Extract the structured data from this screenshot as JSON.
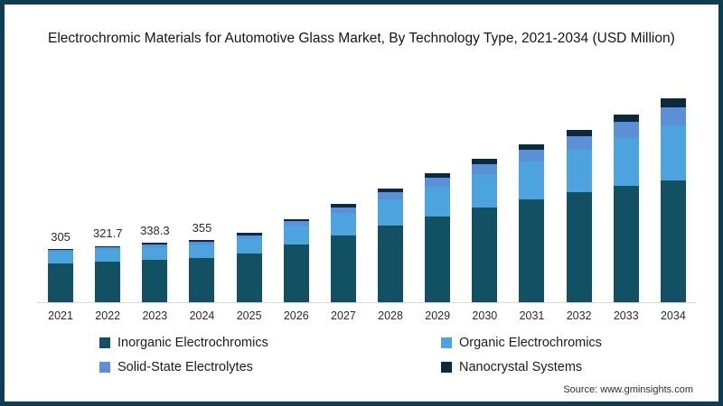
{
  "title": "Electrochromic Materials for Automotive Glass Market, By Technology Type, 2021-2034 (USD Million)",
  "source": "Source: www.gminsights.com",
  "colors": {
    "inorganic": "#125064",
    "organic": "#4da3dd",
    "solid_state": "#5b8fd6",
    "nanocrystal": "#0d2a3a",
    "border": "#0e3e52",
    "axis_line": "#d9d9d9"
  },
  "legend": {
    "items": [
      {
        "label": "Inorganic Electrochromics",
        "color": "#125064"
      },
      {
        "label": "Organic Electrochromics",
        "color": "#4da3dd"
      },
      {
        "label": "Solid-State Electrolytes",
        "color": "#5b8fd6"
      },
      {
        "label": "Nanocrystal Systems",
        "color": "#0d2a3a"
      }
    ]
  },
  "chart_data": {
    "type": "bar",
    "stacked": true,
    "grid": false,
    "legend_position": "bottom",
    "title": "Electrochromic Materials for Automotive Glass Market, By Technology Type, 2021-2034 (USD Million)",
    "xlabel": "",
    "ylabel": "",
    "ylim": [
      0,
      1210
    ],
    "categories": [
      "2021",
      "2022",
      "2023",
      "2024",
      "2025",
      "2026",
      "2027",
      "2028",
      "2029",
      "2030",
      "2031",
      "2032",
      "2033",
      "2034"
    ],
    "series": [
      {
        "name": "Inorganic Electrochromics",
        "color": "#125064",
        "values": [
          222,
          232.7,
          242.3,
          251,
          276,
          327,
          380,
          436,
          489,
          540,
          584,
          629,
          665,
          696
        ]
      },
      {
        "name": "Organic Electrochromics",
        "color": "#4da3dd",
        "values": [
          66,
          70,
          74,
          79,
          88,
          110,
          130,
          152,
          172,
          193,
          221,
          243,
          272,
          312
        ]
      },
      {
        "name": "Solid-State Electrolytes",
        "color": "#5b8fd6",
        "values": [
          10,
          11,
          13,
          15,
          18,
          24,
          32,
          40,
          48,
          55,
          62,
          75,
          90,
          105
        ]
      },
      {
        "name": "Nanocrystal Systems",
        "color": "#0d2a3a",
        "values": [
          7,
          8,
          9,
          10,
          12,
          15,
          18,
          22,
          26,
          30,
          33,
          38,
          43,
          50
        ]
      }
    ],
    "totals": [
      305,
      321.7,
      338.3,
      355,
      394,
      476,
      560,
      650,
      735,
      818,
      900,
      985,
      1070,
      1163
    ],
    "data_labels": {
      "2021": "305",
      "2022": "321.7",
      "2023": "338.3",
      "2024": "355"
    }
  }
}
